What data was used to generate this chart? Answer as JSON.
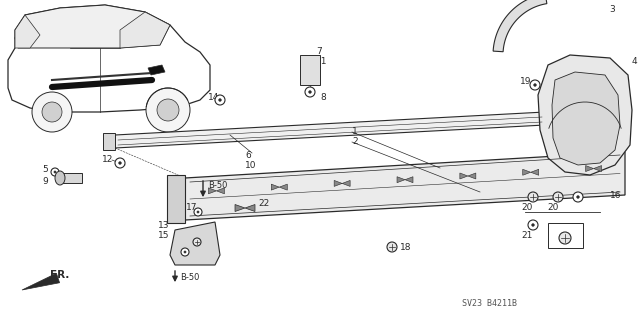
{
  "bg_color": "#ffffff",
  "line_color": "#2a2a2a",
  "footer_text": "SV23 B4211B",
  "fr_label": "FR.",
  "figsize": [
    6.4,
    3.19
  ],
  "dpi": 100
}
